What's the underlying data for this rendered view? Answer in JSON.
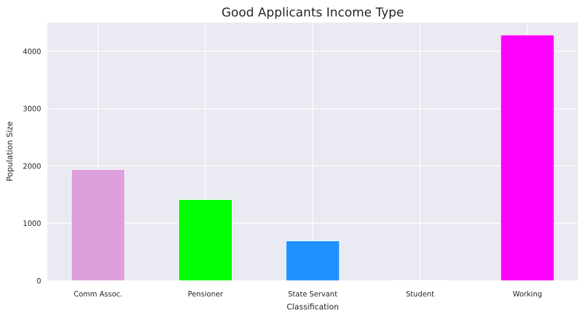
{
  "chart_data": {
    "type": "bar",
    "title": "Good Applicants Income Type",
    "xlabel": "Classification",
    "ylabel": "Population Size",
    "categories": [
      "Comm Assoc.",
      "Pensioner",
      "State Servant",
      "Student",
      "Working"
    ],
    "values": [
      1940,
      1415,
      695,
      3,
      4285
    ],
    "colors": [
      "#dda0dd",
      "#00ff00",
      "#1e90ff",
      "#4b0082",
      "#ff00ff"
    ],
    "yticks": [
      0,
      1000,
      2000,
      3000,
      4000
    ],
    "ylim": [
      0,
      4500
    ],
    "grid": true,
    "legend": "none",
    "background": "#eaeaf2"
  }
}
